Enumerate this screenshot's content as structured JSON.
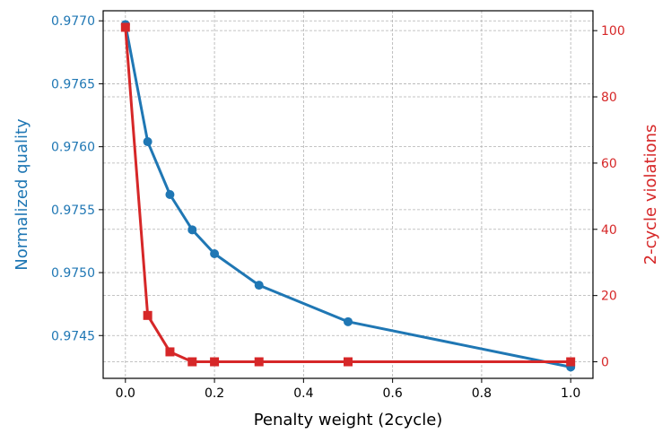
{
  "chart_data": {
    "type": "line",
    "xlabel": "Penalty weight (2cycle)",
    "ylabel_left": "Normalized quality",
    "ylabel_right": "2-cycle violations",
    "x": [
      0.0,
      0.05,
      0.1,
      0.15,
      0.2,
      0.3,
      0.5,
      1.0
    ],
    "xlim": [
      -0.05,
      1.05
    ],
    "xticks": [
      0.0,
      0.2,
      0.4,
      0.6,
      0.8,
      1.0
    ],
    "xtick_labels": [
      "0.0",
      "0.2",
      "0.4",
      "0.6",
      "0.8",
      "1.0"
    ],
    "ylim_left": [
      0.97416,
      0.97708
    ],
    "yticks_left": [
      0.9745,
      0.975,
      0.9755,
      0.976,
      0.9765,
      0.977
    ],
    "ytick_labels_left": [
      "0.9745",
      "0.9750",
      "0.9755",
      "0.9760",
      "0.9765",
      "0.9770"
    ],
    "ylim_right": [
      -5,
      106
    ],
    "yticks_right": [
      0,
      20,
      40,
      60,
      80,
      100
    ],
    "ytick_labels_right": [
      "0",
      "20",
      "40",
      "60",
      "80",
      "100"
    ],
    "grid": true,
    "series": [
      {
        "axis": "left",
        "color": "#1f77b4",
        "marker": "circle",
        "values": [
          0.97697,
          0.97604,
          0.97562,
          0.97534,
          0.97515,
          0.9749,
          0.97461,
          0.97425
        ]
      },
      {
        "axis": "right",
        "color": "#d62728",
        "marker": "square",
        "values": [
          101,
          14,
          3,
          0,
          0,
          0,
          0,
          0
        ]
      }
    ]
  }
}
